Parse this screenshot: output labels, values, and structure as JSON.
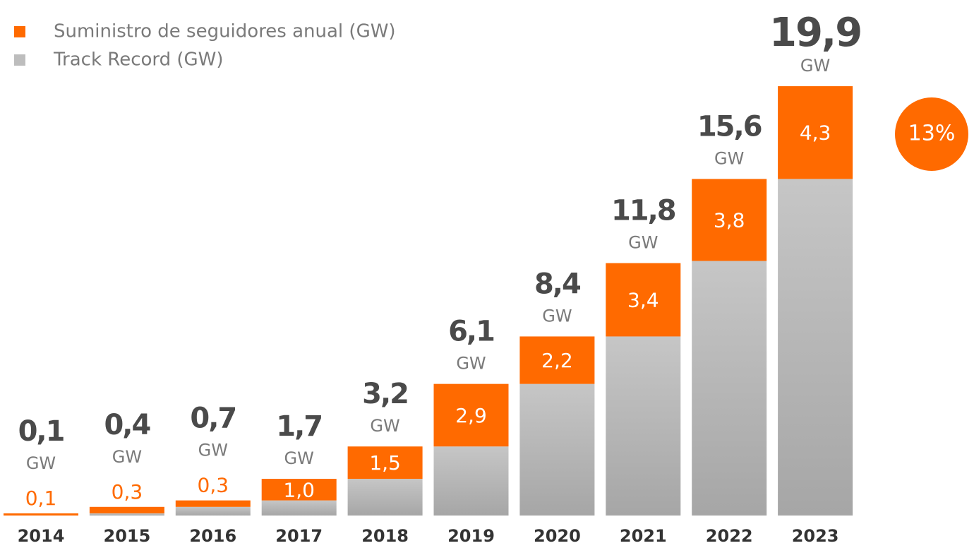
{
  "chart_data": {
    "type": "stacked_bar",
    "categories": [
      "2014",
      "2015",
      "2016",
      "2017",
      "2018",
      "2019",
      "2020",
      "2021",
      "2022",
      "2023"
    ],
    "unit": "GW",
    "series": [
      {
        "name": "Track Record (GW)",
        "color": "#b4b4b4",
        "values": [
          0,
          0.1,
          0.4,
          0.7,
          1.7,
          3.2,
          6.1,
          8.3,
          11.8,
          15.6
        ]
      },
      {
        "name": "Suministro de seguidores anual (GW)",
        "color": "#ff6a00",
        "values": [
          0.1,
          0.3,
          0.3,
          1.0,
          1.5,
          2.9,
          2.2,
          3.4,
          3.8,
          4.3
        ],
        "value_labels": [
          "0,1",
          "0,3",
          "0,3",
          "1,0",
          "1,5",
          "2,9",
          "2,2",
          "3,4",
          "3,8",
          "4,3"
        ]
      }
    ],
    "totals": [
      0.1,
      0.4,
      0.7,
      1.7,
      3.2,
      6.1,
      8.4,
      11.8,
      15.6,
      19.9
    ],
    "total_labels": [
      "0,1",
      "0,4",
      "0,7",
      "1,7",
      "3,2",
      "6,1",
      "8,4",
      "11,8",
      "15,6",
      "19,9"
    ],
    "annotation": "13%"
  }
}
